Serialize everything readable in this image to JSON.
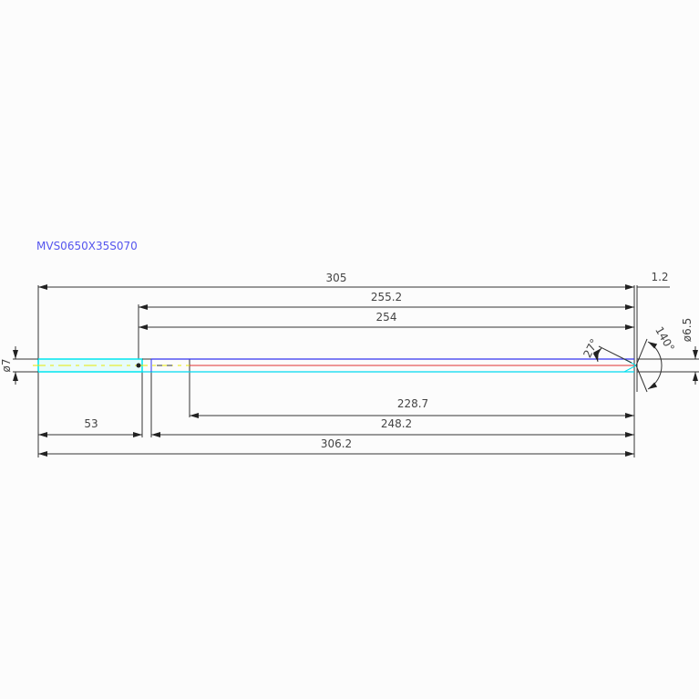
{
  "title": "MVS0650X35S070",
  "dimensions": {
    "overall_length": "305",
    "tip_offset": "1.2",
    "length_a": "255.2",
    "length_b": "254",
    "length_c": "228.7",
    "shank_length": "53",
    "length_d": "248.2",
    "total_length": "306.2",
    "shank_diameter": "ø7",
    "tip_diameter": "ø6.5",
    "angle_small": "27°",
    "point_angle": "140°"
  },
  "colors": {
    "outline": "#333333",
    "shank": "#00e5ee",
    "upper_edge": "#3333ee",
    "centerline_red": "#e03030",
    "centerline_yellow": "#e8e800"
  }
}
